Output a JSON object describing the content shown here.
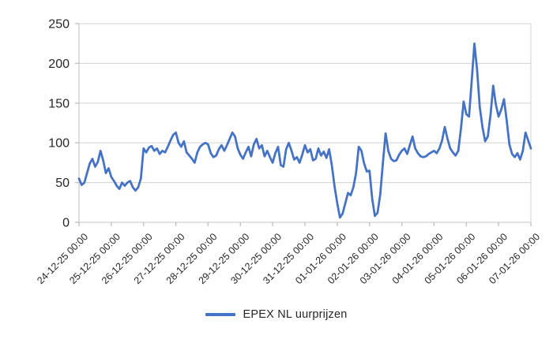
{
  "chart_data": {
    "type": "line",
    "title": "",
    "xlabel": "",
    "ylabel": "",
    "ylim": [
      0,
      250
    ],
    "y_ticks": [
      0,
      50,
      100,
      150,
      200,
      250
    ],
    "grid": "horizontal-only",
    "legend_position": "bottom-center",
    "x_tick_labels": [
      "24-12-25 00:00",
      "25-12-25 00:00",
      "26-12-25 00:00",
      "27-12-25 00:00",
      "28-12-25 00:00",
      "29-12-25 00:00",
      "30-12-25 00:00",
      "31-12-25 00:00",
      "01-01-26 00:00",
      "02-01-26 00:00",
      "03-01-26 00:00",
      "04-01-26 00:00",
      "05-01-26 00:00",
      "06-01-26 00:00",
      "07-01-26 00:00"
    ],
    "x_resolution_hours": 2,
    "points_per_day": 12,
    "series": [
      {
        "name": "EPEX NL uurprijzen",
        "color": "#4472C4",
        "values": [
          55,
          47,
          50,
          62,
          74,
          80,
          70,
          76,
          90,
          78,
          62,
          68,
          57,
          52,
          46,
          42,
          50,
          46,
          50,
          52,
          44,
          40,
          44,
          55,
          93,
          88,
          94,
          96,
          90,
          93,
          86,
          90,
          88,
          95,
          103,
          110,
          113,
          100,
          95,
          102,
          88,
          84,
          80,
          75,
          88,
          95,
          98,
          100,
          98,
          87,
          82,
          84,
          92,
          97,
          90,
          97,
          105,
          113,
          108,
          93,
          85,
          80,
          88,
          95,
          83,
          98,
          105,
          93,
          97,
          83,
          90,
          82,
          75,
          87,
          95,
          72,
          70,
          92,
          100,
          90,
          79,
          82,
          75,
          85,
          97,
          88,
          92,
          78,
          80,
          93,
          84,
          89,
          81,
          92,
          72,
          45,
          24,
          6,
          11,
          24,
          37,
          34,
          44,
          62,
          95,
          90,
          74,
          64,
          65,
          30,
          8,
          12,
          35,
          75,
          112,
          90,
          80,
          77,
          78,
          85,
          90,
          93,
          86,
          97,
          108,
          93,
          87,
          83,
          82,
          83,
          86,
          88,
          90,
          87,
          93,
          103,
          120,
          105,
          93,
          88,
          84,
          90,
          118,
          152,
          136,
          133,
          178,
          225,
          192,
          145,
          120,
          102,
          108,
          135,
          172,
          148,
          133,
          142,
          155,
          128,
          98,
          86,
          82,
          87,
          79,
          90,
          113,
          103,
          93
        ]
      }
    ],
    "colors": {
      "line": "#4472C4",
      "grid": "#D9D9D9",
      "axis": "#D0D0D0",
      "tick": "#C2C2C2",
      "label": "#262626",
      "background": "#FFFFFF"
    }
  }
}
